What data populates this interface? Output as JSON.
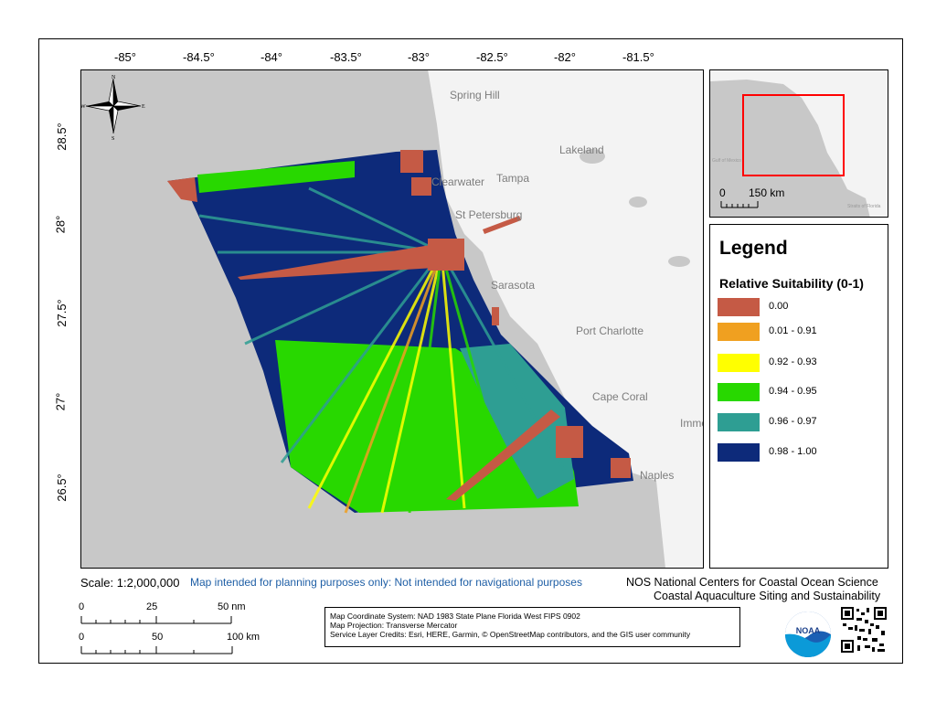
{
  "map": {
    "longitude_ticks": [
      "-85°",
      "-84.5°",
      "-84°",
      "-83.5°",
      "-83°",
      "-82.5°",
      "-82°",
      "-81.5°"
    ],
    "latitude_ticks": [
      "28.5°",
      "28°",
      "27.5°",
      "27°",
      "26.5°"
    ],
    "place_labels": [
      "Spring Hill",
      "Lakeland",
      "Clearwater",
      "Tampa",
      "St Petersburg",
      "Sarasota",
      "Port Charlotte",
      "Cape Coral",
      "Immo",
      "Naples"
    ],
    "compass": {
      "n": "N",
      "s": "S",
      "e": "E",
      "w": "W"
    },
    "colors": {
      "water": "#c8c8c8",
      "land": "#f3f3f3"
    }
  },
  "inset": {
    "scale_values": [
      "0",
      "150 km"
    ],
    "labels": [
      "Gulf of Mexico",
      "Straits of Florida"
    ],
    "extent_color": "#ff0000"
  },
  "legend": {
    "title": "Legend",
    "subtitle": "Relative Suitability (0-1)",
    "items": [
      {
        "label": "0.00",
        "color": "#c55a45"
      },
      {
        "label": "0.01 - 0.91",
        "color": "#f0a020"
      },
      {
        "label": "0.92 - 0.93",
        "color": "#ffff00"
      },
      {
        "label": "0.94 - 0.95",
        "color": "#28d800"
      },
      {
        "label": "0.96 - 0.97",
        "color": "#2e9e93"
      },
      {
        "label": "0.98 - 1.00",
        "color": "#0d2a7a"
      }
    ]
  },
  "footer": {
    "scale": "Scale: 1:2,000,000",
    "disclaimer": "Map intended for planning purposes only: Not intended for navigational purposes",
    "org_line1": "NOS National Centers for Coastal Ocean Science",
    "org_line2": "Coastal Aquaculture Siting and Sustainability",
    "credits": [
      "Map Coordinate System: NAD 1983 State Plane Florida West FIPS 0902",
      "Map Projection: Transverse Mercator",
      "Service Layer Credits: Esri, HERE, Garmin, © OpenStreetMap contributors, and the GIS user community"
    ],
    "scalebar_nm": [
      "0",
      "25",
      "50 nm"
    ],
    "scalebar_km": [
      "0",
      "50",
      "100 km"
    ],
    "noaa_logo_text": "NOAA"
  }
}
